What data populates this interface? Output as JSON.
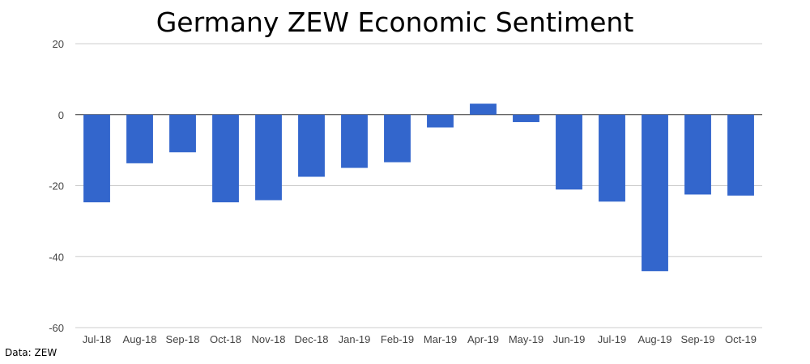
{
  "chart_data": {
    "type": "bar",
    "title": "Germany ZEW Economic Sentiment",
    "xlabel": "",
    "ylabel": "",
    "ylim": [
      -60,
      20
    ],
    "yticks": [
      "20",
      "0",
      "-20",
      "-40",
      "-60"
    ],
    "ytick_values": [
      20,
      0,
      -20,
      -40,
      -60
    ],
    "grid": true,
    "legend": "none",
    "bar_color": "#3366cc",
    "grid_color": "#cccccc",
    "categories": [
      "Jul-18",
      "Aug-18",
      "Sep-18",
      "Oct-18",
      "Nov-18",
      "Dec-18",
      "Jan-19",
      "Feb-19",
      "Mar-19",
      "Apr-19",
      "May-19",
      "Jun-19",
      "Jul-19",
      "Aug-19",
      "Sep-19",
      "Oct-19"
    ],
    "values": [
      -24.7,
      -13.7,
      -10.6,
      -24.7,
      -24.1,
      -17.5,
      -15.0,
      -13.4,
      -3.6,
      3.1,
      -2.1,
      -21.1,
      -24.5,
      -44.1,
      -22.5,
      -22.8
    ]
  },
  "source_note": "Data: ZEW"
}
